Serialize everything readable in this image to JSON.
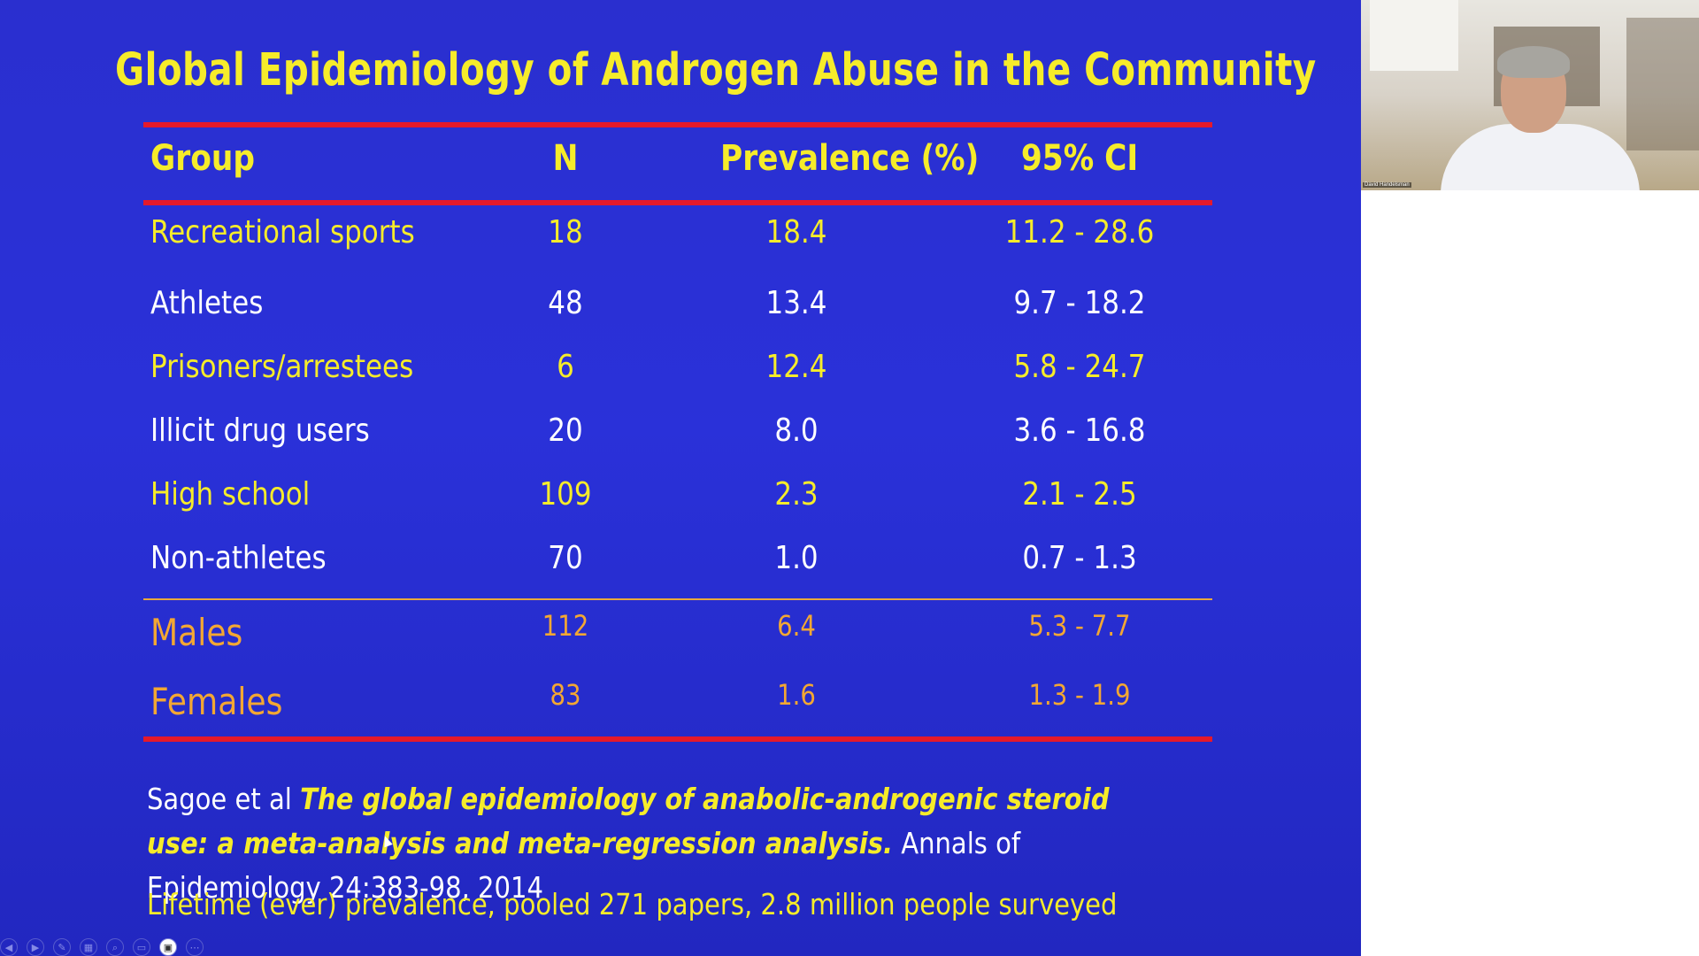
{
  "slide": {
    "title": "Global Epidemiology of Androgen Abuse in the Community",
    "table": {
      "headers": [
        "Group",
        "N",
        "Prevalence (%)",
        "95% CI"
      ],
      "rows": [
        {
          "group": "Recreational sports",
          "n": "18",
          "prevalence": "18.4",
          "ci": "11.2 - 28.6"
        },
        {
          "group": "Athletes",
          "n": "48",
          "prevalence": "13.4",
          "ci": "9.7 - 18.2"
        },
        {
          "group": "Prisoners/arrestees",
          "n": "6",
          "prevalence": "12.4",
          "ci": "5.8 - 24.7"
        },
        {
          "group": "Illicit drug users",
          "n": "20",
          "prevalence": "8.0",
          "ci": "3.6 - 16.8"
        },
        {
          "group": "High school",
          "n": "109",
          "prevalence": "2.3",
          "ci": "2.1 - 2.5"
        },
        {
          "group": "Non-athletes",
          "n": "70",
          "prevalence": "1.0",
          "ci": "0.7 - 1.3"
        }
      ],
      "summary_rows": [
        {
          "group": "Males",
          "n": "112",
          "prevalence": "6.4",
          "ci": "5.3 - 7.7"
        },
        {
          "group": "Females",
          "n": "83",
          "prevalence": "1.6",
          "ci": "1.3 - 1.9"
        }
      ]
    },
    "reference": {
      "authors": "Sagoe et al ",
      "title": "The global epidemiology of anabolic-androgenic steroid use: a meta-analysis and meta-regression analysis.",
      "journal": " Annals of Epidemiology 24:383-98, 2014"
    },
    "note": "Lifetime (ever) prevalence, pooled 271 papers, 2.8 million people surveyed"
  },
  "colors": {
    "background": "#2a31d9",
    "title_yellow": "#f6ec2a",
    "rule_red": "#e5192b",
    "summary_orange": "#f3a733"
  },
  "controls": [
    "prev-icon",
    "play-icon",
    "pen-icon",
    "slides-icon",
    "zoom-icon",
    "subtitles-icon",
    "presenter-view-icon",
    "more-icon"
  ],
  "webcam": {
    "name_label": "David Handelsman"
  }
}
